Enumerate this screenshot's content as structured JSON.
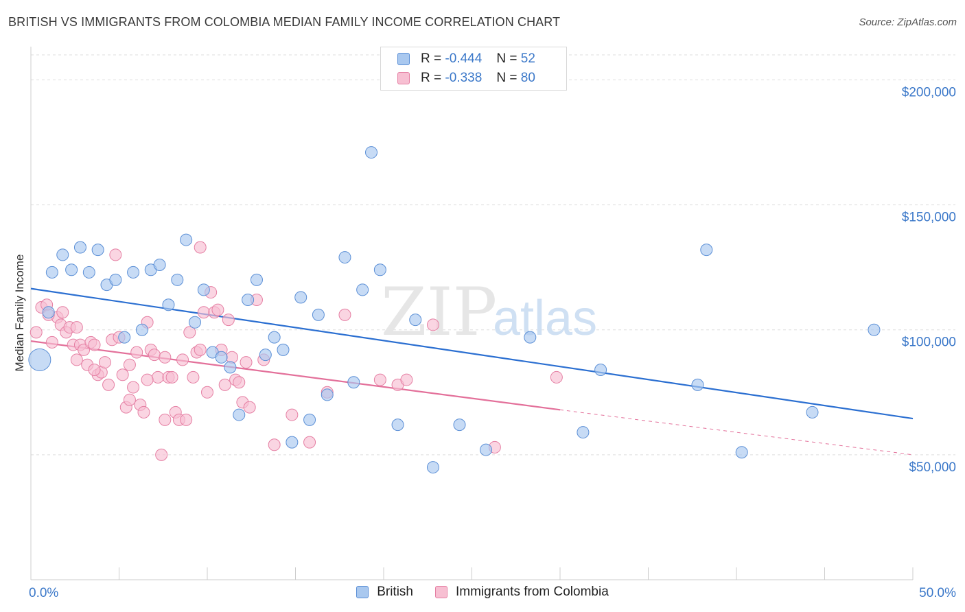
{
  "header": {
    "title": "BRITISH VS IMMIGRANTS FROM COLOMBIA MEDIAN FAMILY INCOME CORRELATION CHART",
    "source": "Source: ZipAtlas.com"
  },
  "watermark": {
    "zip": "ZIP",
    "atlas": "atlas"
  },
  "legend": {
    "rows": [
      {
        "r_label": "R =",
        "r_value": "-0.444",
        "n_label": "N =",
        "n_value": "52",
        "color": "#a9c8ef"
      },
      {
        "r_label": "R =",
        "r_value": "-0.338",
        "n_label": "N =",
        "n_value": "80",
        "color": "#f5b8cc"
      }
    ]
  },
  "bottom_legend": {
    "british": "British",
    "colombia": "Immigrants from Colombia"
  },
  "colors": {
    "british_fill": "#a9c8ef",
    "british_stroke": "#5b8fd6",
    "british_line": "#2b6fd1",
    "colombia_fill": "#f7bfd2",
    "colombia_stroke": "#e57fa3",
    "colombia_line": "#e3709a",
    "axis_label": "#3b78c9",
    "grid": "#dddddd"
  },
  "chart_data": {
    "type": "scatter",
    "title": "BRITISH VS IMMIGRANTS FROM COLOMBIA MEDIAN FAMILY INCOME CORRELATION CHART",
    "xlabel": "",
    "ylabel": "Median Family Income",
    "xlim": [
      0,
      50
    ],
    "ylim": [
      0,
      210000
    ],
    "x_tick_labels": [
      "0.0%",
      "50.0%"
    ],
    "y_ticks": [
      50000,
      100000,
      150000,
      200000
    ],
    "y_tick_labels": [
      "$50,000",
      "$100,000",
      "$150,000",
      "$200,000"
    ],
    "grid": true,
    "legend_position": "top-center",
    "series": [
      {
        "name": "British",
        "r": -0.444,
        "n": 52,
        "trend": {
          "x": [
            0,
            50
          ],
          "y": [
            116500,
            64500
          ]
        },
        "points": [
          [
            0.5,
            88000
          ],
          [
            1.0,
            107000
          ],
          [
            1.8,
            130000
          ],
          [
            1.2,
            123000
          ],
          [
            2.3,
            124000
          ],
          [
            2.8,
            133000
          ],
          [
            3.3,
            123000
          ],
          [
            3.8,
            132000
          ],
          [
            4.3,
            118000
          ],
          [
            4.8,
            120000
          ],
          [
            5.3,
            97000
          ],
          [
            5.8,
            123000
          ],
          [
            6.3,
            100000
          ],
          [
            6.8,
            124000
          ],
          [
            7.3,
            126000
          ],
          [
            7.8,
            110000
          ],
          [
            8.3,
            120000
          ],
          [
            8.8,
            136000
          ],
          [
            9.3,
            103000
          ],
          [
            9.8,
            116000
          ],
          [
            10.3,
            91000
          ],
          [
            10.8,
            89000
          ],
          [
            11.3,
            85000
          ],
          [
            11.8,
            66000
          ],
          [
            12.3,
            112000
          ],
          [
            12.8,
            120000
          ],
          [
            13.3,
            90000
          ],
          [
            13.8,
            97000
          ],
          [
            14.3,
            92000
          ],
          [
            14.8,
            55000
          ],
          [
            15.3,
            113000
          ],
          [
            15.8,
            64000
          ],
          [
            16.3,
            106000
          ],
          [
            16.8,
            74000
          ],
          [
            17.8,
            129000
          ],
          [
            18.3,
            79000
          ],
          [
            18.8,
            116000
          ],
          [
            19.3,
            171000
          ],
          [
            19.8,
            124000
          ],
          [
            20.8,
            62000
          ],
          [
            21.8,
            104000
          ],
          [
            22.8,
            45000
          ],
          [
            24.3,
            62000
          ],
          [
            25.8,
            52000
          ],
          [
            28.3,
            97000
          ],
          [
            31.3,
            59000
          ],
          [
            32.3,
            84000
          ],
          [
            37.8,
            78000
          ],
          [
            38.3,
            132000
          ],
          [
            40.3,
            51000
          ],
          [
            44.3,
            67000
          ],
          [
            47.8,
            100000
          ]
        ]
      },
      {
        "name": "Immigrants from Colombia",
        "r": -0.338,
        "n": 80,
        "trend": {
          "x": [
            0,
            30
          ],
          "y": [
            95500,
            68000
          ],
          "dashed_to": {
            "x": 50,
            "y": 50000
          }
        },
        "points": [
          [
            0.3,
            99000
          ],
          [
            0.6,
            109000
          ],
          [
            0.9,
            110000
          ],
          [
            1.2,
            95000
          ],
          [
            1.5,
            105000
          ],
          [
            1.7,
            102000
          ],
          [
            1.8,
            107000
          ],
          [
            2.0,
            99000
          ],
          [
            2.2,
            101000
          ],
          [
            2.4,
            94000
          ],
          [
            2.6,
            101000
          ],
          [
            2.8,
            94000
          ],
          [
            3.0,
            92000
          ],
          [
            3.2,
            86000
          ],
          [
            3.4,
            95000
          ],
          [
            3.6,
            94000
          ],
          [
            3.8,
            82000
          ],
          [
            4.0,
            83000
          ],
          [
            4.2,
            87000
          ],
          [
            4.4,
            78000
          ],
          [
            4.6,
            96000
          ],
          [
            4.8,
            130000
          ],
          [
            5.0,
            97000
          ],
          [
            5.2,
            82000
          ],
          [
            5.4,
            69000
          ],
          [
            5.6,
            72000
          ],
          [
            5.8,
            77000
          ],
          [
            6.0,
            91000
          ],
          [
            6.2,
            70000
          ],
          [
            6.4,
            67000
          ],
          [
            6.6,
            103000
          ],
          [
            6.8,
            92000
          ],
          [
            7.0,
            90000
          ],
          [
            7.2,
            81000
          ],
          [
            7.4,
            50000
          ],
          [
            7.6,
            89000
          ],
          [
            7.8,
            81000
          ],
          [
            8.0,
            81000
          ],
          [
            8.2,
            67000
          ],
          [
            8.4,
            64000
          ],
          [
            8.6,
            88000
          ],
          [
            8.8,
            64000
          ],
          [
            9.0,
            99000
          ],
          [
            9.2,
            81000
          ],
          [
            9.4,
            91000
          ],
          [
            9.6,
            133000
          ],
          [
            9.8,
            107000
          ],
          [
            10.0,
            75000
          ],
          [
            10.2,
            115000
          ],
          [
            10.4,
            107000
          ],
          [
            10.6,
            108000
          ],
          [
            10.8,
            92000
          ],
          [
            11.0,
            78000
          ],
          [
            11.2,
            104000
          ],
          [
            11.4,
            89000
          ],
          [
            11.6,
            80000
          ],
          [
            11.8,
            79000
          ],
          [
            12.0,
            71000
          ],
          [
            12.2,
            87000
          ],
          [
            12.4,
            69000
          ],
          [
            12.8,
            112000
          ],
          [
            13.2,
            88000
          ],
          [
            13.8,
            54000
          ],
          [
            14.8,
            66000
          ],
          [
            15.8,
            55000
          ],
          [
            16.8,
            75000
          ],
          [
            17.8,
            106000
          ],
          [
            19.8,
            80000
          ],
          [
            20.8,
            78000
          ],
          [
            21.3,
            80000
          ],
          [
            22.8,
            102000
          ],
          [
            26.3,
            53000
          ],
          [
            29.8,
            81000
          ],
          [
            1.0,
            106000
          ],
          [
            2.6,
            88000
          ],
          [
            3.6,
            84000
          ],
          [
            5.6,
            86000
          ],
          [
            6.6,
            80000
          ],
          [
            7.6,
            64000
          ],
          [
            9.6,
            92000
          ]
        ]
      }
    ]
  }
}
